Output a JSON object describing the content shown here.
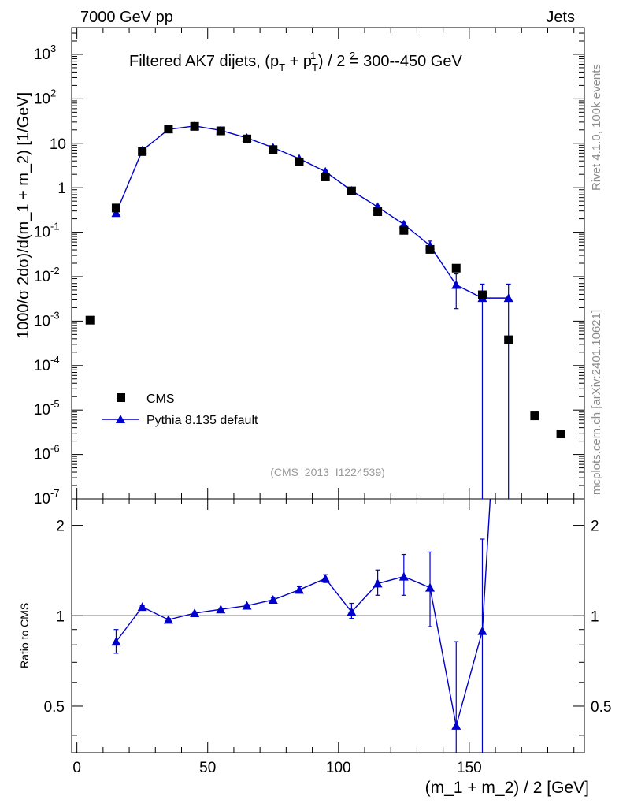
{
  "header": {
    "left": "7000 GeV pp",
    "right": "Jets"
  },
  "side_labels": {
    "rivet": "Rivet 4.1.0,  100k events",
    "mcplots": "mcplots.cern.ch [arXiv:2401.10621]"
  },
  "chart_data": [
    {
      "type": "scatter",
      "title": "Filtered AK7 dijets, (p_T^1 + p_T^2) / 2 = 300--450 GeV",
      "title_parts": {
        "pre": "Filtered AK7 dijets, (p",
        "sup1": "1",
        "sub1": "T",
        "mid": " + p",
        "sup2": "2",
        "sub2": "T",
        "post": ") / 2 = 300--450 GeV"
      },
      "watermark": "(CMS_2013_I1224539)",
      "ylabel": "1000/σ  2dσ)/d(m_1 + m_2) [1/GeV]",
      "yscale": "log",
      "xlim": [
        -2,
        194
      ],
      "ylim": [
        1e-07,
        4000
      ],
      "ytick_labels": [
        {
          "base": "10",
          "exp": "-7",
          "value": 1e-07
        },
        {
          "base": "10",
          "exp": "-6",
          "value": 1e-06
        },
        {
          "base": "10",
          "exp": "-5",
          "value": 1e-05
        },
        {
          "base": "10",
          "exp": "-4",
          "value": 0.0001
        },
        {
          "base": "10",
          "exp": "-3",
          "value": 0.001
        },
        {
          "base": "10",
          "exp": "-2",
          "value": 0.01
        },
        {
          "base": "10",
          "exp": "-1",
          "value": 0.1
        },
        {
          "base": "1",
          "exp": "",
          "value": 1
        },
        {
          "base": "10",
          "exp": "",
          "value": 10
        },
        {
          "base": "10",
          "exp": "2",
          "value": 100
        },
        {
          "base": "10",
          "exp": "3",
          "value": 1000
        }
      ],
      "legend": {
        "placement": "lower-left",
        "entries": [
          "CMS",
          "Pythia 8.135 default"
        ]
      },
      "series": [
        {
          "name": "CMS",
          "marker": "square",
          "color": "#000000",
          "x": [
            5,
            15,
            25,
            35,
            45,
            55,
            65,
            75,
            85,
            95,
            105,
            115,
            125,
            135,
            145,
            155,
            165,
            175,
            185
          ],
          "y": [
            0.00105,
            0.35,
            6.5,
            21,
            24,
            19,
            12.5,
            7.2,
            3.8,
            1.75,
            0.85,
            0.29,
            0.11,
            0.041,
            0.0155,
            0.0039,
            0.00038,
            7.4e-06,
            2.9e-06
          ]
        },
        {
          "name": "Pythia 8.135 default",
          "marker": "triangle",
          "color": "#0000cc",
          "x": [
            15,
            25,
            35,
            45,
            55,
            65,
            75,
            85,
            95,
            105,
            115,
            125,
            135,
            145,
            155,
            165
          ],
          "y": [
            0.27,
            6.9,
            20.5,
            24.5,
            19.5,
            13.2,
            8.0,
            4.5,
            2.3,
            0.86,
            0.37,
            0.15,
            0.05,
            0.0065,
            0.0033,
            0.0033
          ],
          "yerr_low": [
            0.25,
            6.7,
            20.2,
            24.2,
            19.3,
            13.0,
            7.8,
            4.3,
            2.15,
            0.82,
            0.34,
            0.135,
            0.038,
            0.0019,
            1e-07,
            1e-07
          ],
          "yerr_high": [
            0.29,
            7.1,
            20.8,
            24.8,
            19.7,
            13.4,
            8.2,
            4.7,
            2.45,
            0.9,
            0.4,
            0.165,
            0.063,
            0.0115,
            0.0068,
            0.0068
          ]
        }
      ]
    },
    {
      "type": "line",
      "ylabel": "Ratio to CMS",
      "xlabel": "(m_1 + m_2) / 2 [GeV]",
      "xlim": [
        -2,
        194
      ],
      "ylim": [
        0.35,
        2.45
      ],
      "yscale": "log",
      "xtick_labels": [
        "0",
        "50",
        "100",
        "150"
      ],
      "xtick_values": [
        0,
        50,
        100,
        150
      ],
      "ytick_labels": [
        "0.5",
        "1",
        "2"
      ],
      "ytick_values": [
        0.5,
        1,
        2
      ],
      "reference_line": 1,
      "series": [
        {
          "name": "Pythia 8.135 default",
          "color": "#0000cc",
          "x": [
            15,
            25,
            35,
            45,
            55,
            65,
            75,
            85,
            95,
            105,
            115,
            125,
            135,
            145,
            155,
            158
          ],
          "y": [
            0.82,
            1.07,
            0.97,
            1.02,
            1.05,
            1.08,
            1.13,
            1.22,
            1.33,
            1.03,
            1.28,
            1.35,
            1.24,
            0.43,
            0.89,
            2.5
          ],
          "err_low": [
            0.75,
            1.06,
            0.96,
            1.01,
            1.04,
            1.07,
            1.11,
            1.19,
            1.29,
            0.98,
            1.17,
            1.17,
            0.92,
            0.2,
            0.2,
            2.5
          ],
          "err_high": [
            0.9,
            1.08,
            0.98,
            1.03,
            1.06,
            1.09,
            1.15,
            1.25,
            1.37,
            1.1,
            1.42,
            1.6,
            1.63,
            0.82,
            1.8,
            2.5
          ]
        }
      ]
    }
  ]
}
